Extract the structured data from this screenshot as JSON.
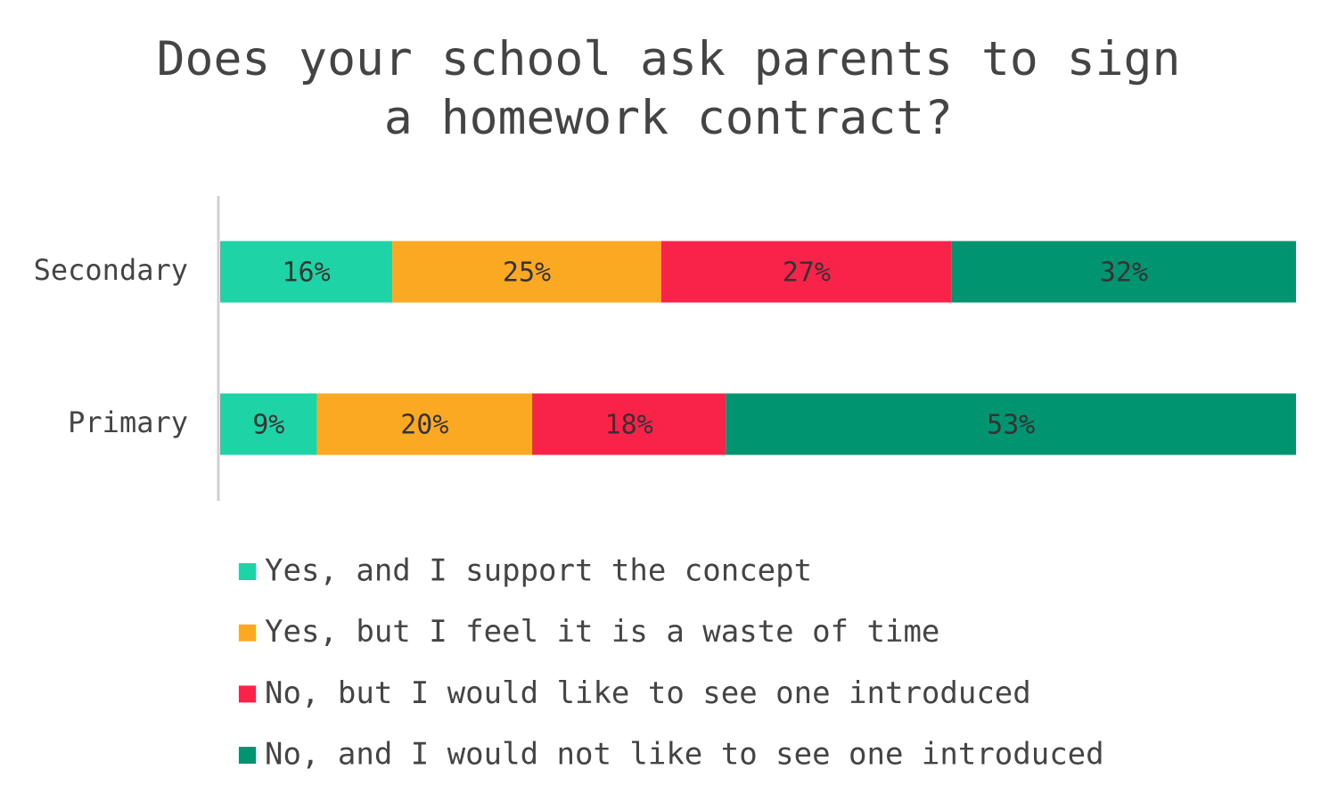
{
  "chart_data": {
    "type": "stacked_bar_horizontal",
    "title": "Does your school ask parents to sign a homework contract?",
    "categories": [
      "Secondary",
      "Primary"
    ],
    "xlim": [
      0,
      100
    ],
    "series": [
      {
        "name": "Yes, and I support the concept",
        "color": "#1ed3a6",
        "values": [
          16,
          9
        ],
        "value_labels": [
          "16%",
          "9%"
        ]
      },
      {
        "name": "Yes, but I feel it is a waste of time",
        "color": "#fba823",
        "values": [
          25,
          20
        ],
        "value_labels": [
          "25%",
          "20%"
        ]
      },
      {
        "name": "No, but I would like to see one introduced",
        "color": "#f9234a",
        "values": [
          27,
          18
        ],
        "value_labels": [
          "27%",
          "18%"
        ]
      },
      {
        "name": "No, and I would not like to see one introduced",
        "color": "#009470",
        "values": [
          32,
          53
        ],
        "value_labels": [
          "32%",
          "53%"
        ]
      }
    ],
    "legend": "bottom"
  }
}
